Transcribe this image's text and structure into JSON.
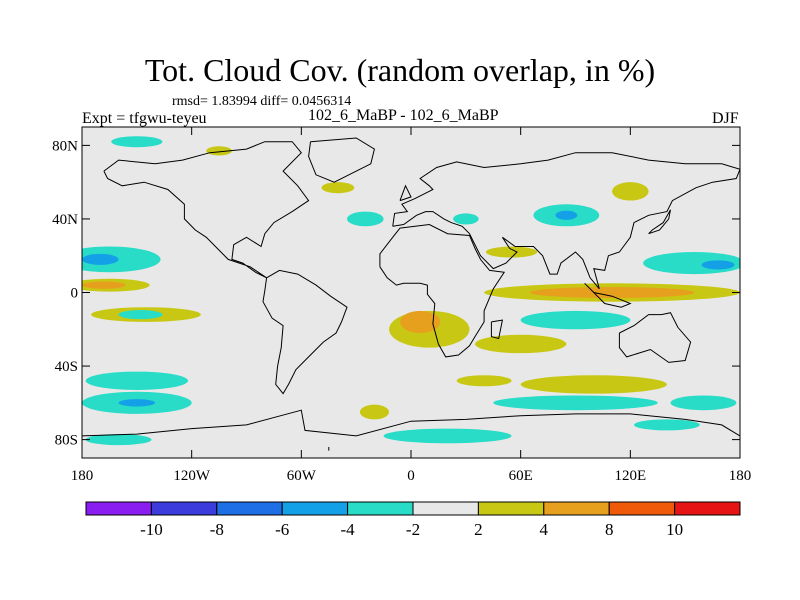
{
  "title": "Tot. Cloud Cov. (random overlap, in %)",
  "stats": "rmsd= 1.83994  diff= 0.0456314",
  "experiment": "Expt = tfgwu-teyeu",
  "runs": "102_6_MaBP - 102_6_MaBP",
  "season": "DJF",
  "y_axis": {
    "ticks": [
      {
        "value": 80,
        "label": "80N"
      },
      {
        "value": 40,
        "label": "40N"
      },
      {
        "value": 0,
        "label": "0"
      },
      {
        "value": -40,
        "label": "40S"
      },
      {
        "value": -80,
        "label": "80S"
      }
    ],
    "range": [
      -90,
      90
    ]
  },
  "x_axis": {
    "ticks": [
      {
        "value": -180,
        "label": "180"
      },
      {
        "value": -120,
        "label": "120W"
      },
      {
        "value": -60,
        "label": "60W"
      },
      {
        "value": 0,
        "label": "0"
      },
      {
        "value": 60,
        "label": "60E"
      },
      {
        "value": 120,
        "label": "120E"
      },
      {
        "value": 180,
        "label": "180"
      }
    ],
    "range": [
      -180,
      180
    ]
  },
  "colorbar": {
    "colors": [
      "#8a1ef0",
      "#3c3cdc",
      "#1e6ee6",
      "#14a0e6",
      "#28dcc8",
      "#e8e8e8",
      "#c8c814",
      "#e6a01e",
      "#ee5a0a",
      "#e61414"
    ],
    "labels": [
      "-10",
      "-8",
      "-6",
      "-4",
      "-2",
      "2",
      "4",
      "8",
      "10"
    ]
  },
  "field_blobs": [
    {
      "lon": -150,
      "lat": 82,
      "rx": 14,
      "ry": 3,
      "color": "#28dcc8"
    },
    {
      "lon": -105,
      "lat": 77,
      "rx": 7,
      "ry": 2.5,
      "color": "#c8c814"
    },
    {
      "lon": -40,
      "lat": 57,
      "rx": 9,
      "ry": 3,
      "color": "#c8c814"
    },
    {
      "lon": -25,
      "lat": 40,
      "rx": 10,
      "ry": 4,
      "color": "#28dcc8"
    },
    {
      "lon": 30,
      "lat": 40,
      "rx": 7,
      "ry": 3,
      "color": "#28dcc8"
    },
    {
      "lon": 85,
      "lat": 42,
      "rx": 18,
      "ry": 6,
      "color": "#28dcc8"
    },
    {
      "lon": 85,
      "lat": 42,
      "rx": 6,
      "ry": 2.5,
      "color": "#14a0e6"
    },
    {
      "lon": 120,
      "lat": 55,
      "rx": 10,
      "ry": 5,
      "color": "#c8c814"
    },
    {
      "lon": -165,
      "lat": 18,
      "rx": 28,
      "ry": 7,
      "color": "#28dcc8"
    },
    {
      "lon": -170,
      "lat": 18,
      "rx": 10,
      "ry": 3,
      "color": "#14a0e6"
    },
    {
      "lon": 155,
      "lat": 16,
      "rx": 28,
      "ry": 6,
      "color": "#28dcc8"
    },
    {
      "lon": 168,
      "lat": 15,
      "rx": 9,
      "ry": 2.5,
      "color": "#14a0e6"
    },
    {
      "lon": 55,
      "lat": 22,
      "rx": 14,
      "ry": 3,
      "color": "#c8c814"
    },
    {
      "lon": -165,
      "lat": 4,
      "rx": 22,
      "ry": 3.5,
      "color": "#c8c814"
    },
    {
      "lon": -168,
      "lat": 4,
      "rx": 12,
      "ry": 2,
      "color": "#e6a01e"
    },
    {
      "lon": 110,
      "lat": 0,
      "rx": 70,
      "ry": 5,
      "color": "#c8c814"
    },
    {
      "lon": 110,
      "lat": 0,
      "rx": 45,
      "ry": 3,
      "color": "#e6a01e"
    },
    {
      "lon": -145,
      "lat": -12,
      "rx": 30,
      "ry": 4,
      "color": "#c8c814"
    },
    {
      "lon": -148,
      "lat": -12,
      "rx": 12,
      "ry": 2.5,
      "color": "#28dcc8"
    },
    {
      "lon": 10,
      "lat": -20,
      "rx": 22,
      "ry": 10,
      "color": "#c8c814"
    },
    {
      "lon": 5,
      "lat": -16,
      "rx": 11,
      "ry": 6,
      "color": "#e6a01e"
    },
    {
      "lon": 90,
      "lat": -15,
      "rx": 30,
      "ry": 5,
      "color": "#28dcc8"
    },
    {
      "lon": 60,
      "lat": -28,
      "rx": 25,
      "ry": 5,
      "color": "#c8c814"
    },
    {
      "lon": -150,
      "lat": -48,
      "rx": 28,
      "ry": 5,
      "color": "#28dcc8"
    },
    {
      "lon": -150,
      "lat": -60,
      "rx": 30,
      "ry": 6,
      "color": "#28dcc8"
    },
    {
      "lon": -150,
      "lat": -60,
      "rx": 10,
      "ry": 2,
      "color": "#14a0e6"
    },
    {
      "lon": 40,
      "lat": -48,
      "rx": 15,
      "ry": 3,
      "color": "#c8c814"
    },
    {
      "lon": 100,
      "lat": -50,
      "rx": 40,
      "ry": 5,
      "color": "#c8c814"
    },
    {
      "lon": 90,
      "lat": -60,
      "rx": 45,
      "ry": 4,
      "color": "#28dcc8"
    },
    {
      "lon": 160,
      "lat": -60,
      "rx": 18,
      "ry": 4,
      "color": "#28dcc8"
    },
    {
      "lon": -20,
      "lat": -65,
      "rx": 8,
      "ry": 4,
      "color": "#c8c814"
    },
    {
      "lon": -160,
      "lat": -80,
      "rx": 18,
      "ry": 3,
      "color": "#28dcc8"
    },
    {
      "lon": 20,
      "lat": -78,
      "rx": 35,
      "ry": 4,
      "color": "#28dcc8"
    },
    {
      "lon": 140,
      "lat": -72,
      "rx": 18,
      "ry": 3,
      "color": "#28dcc8"
    }
  ]
}
